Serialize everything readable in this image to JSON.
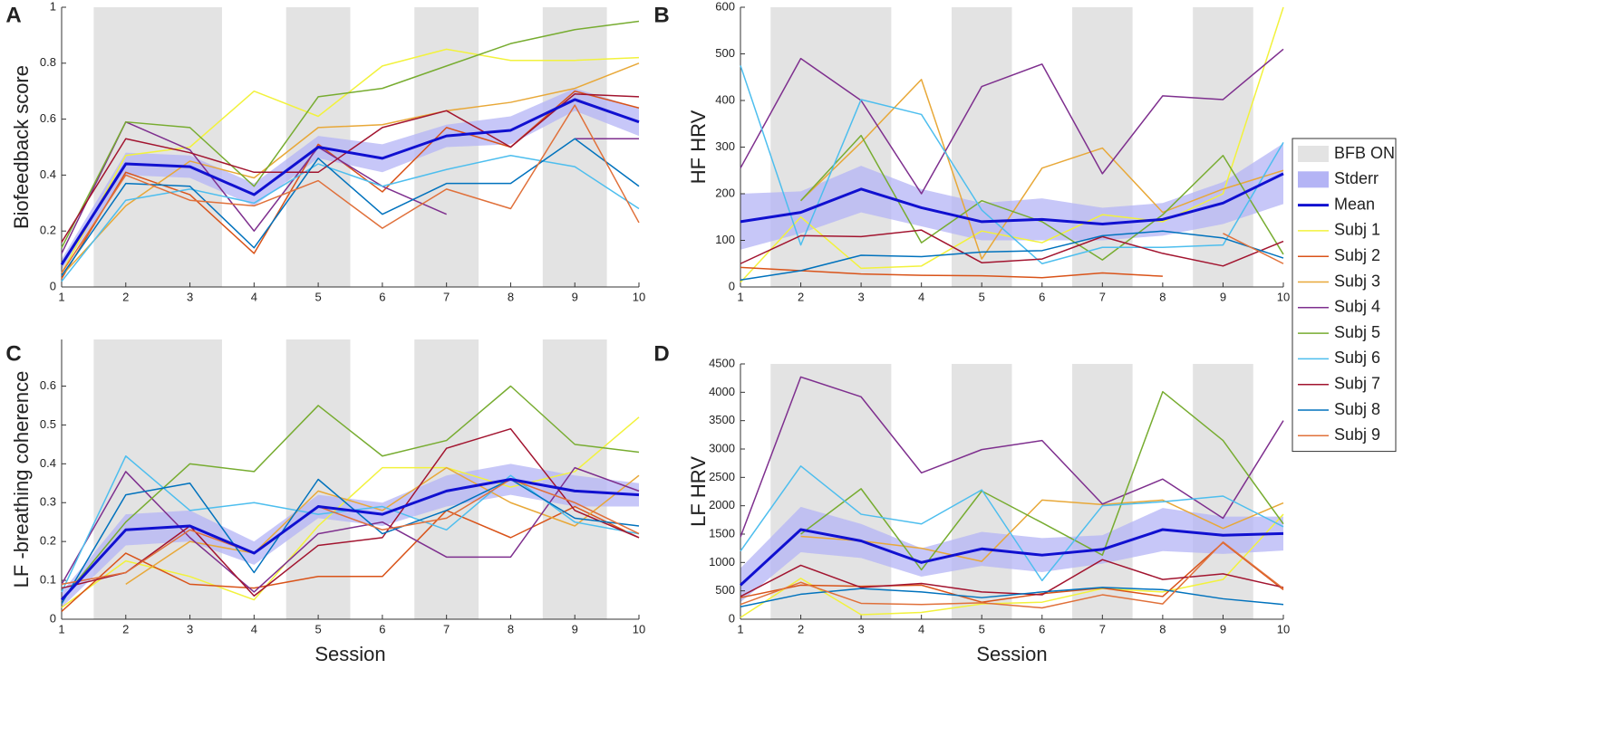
{
  "chart_data": [
    {
      "type": "line",
      "panel": "A",
      "y_label": "Biofeedback score",
      "x": [
        1,
        2,
        3,
        4,
        5,
        6,
        7,
        8,
        9,
        10
      ],
      "xlim": [
        1,
        10
      ],
      "xticks": [
        1,
        2,
        3,
        4,
        5,
        6,
        7,
        8,
        9,
        10
      ],
      "ylim": [
        0,
        1
      ],
      "yticks": [
        0,
        0.2,
        0.4,
        0.6,
        0.8,
        1
      ],
      "shaded": {
        "name": "BFB ON",
        "color": "#e3e3e3",
        "spans": [
          [
            1.5,
            3.5
          ],
          [
            4.5,
            5.5
          ],
          [
            6.5,
            7.5
          ],
          [
            8.5,
            9.5
          ]
        ]
      },
      "band": {
        "name": "Stderr",
        "color": "#b4b4f5",
        "values": [
          0.02,
          0.04,
          0.04,
          0.04,
          0.04,
          0.05,
          0.04,
          0.05,
          0.04,
          0.05
        ]
      },
      "series": [
        {
          "name": "Mean",
          "color": "#1010d0",
          "width": 3,
          "values": [
            0.08,
            0.44,
            0.43,
            0.33,
            0.5,
            0.46,
            0.54,
            0.56,
            0.67,
            0.59
          ]
        },
        {
          "name": "Subj 1",
          "color": "#f2f23c",
          "width": 1.5,
          "values": [
            0.05,
            0.47,
            0.5,
            0.7,
            0.61,
            0.79,
            0.85,
            0.81,
            0.81,
            0.82
          ]
        },
        {
          "name": "Subj 2",
          "color": "#d95319",
          "width": 1.5,
          "values": [
            0.03,
            0.41,
            0.33,
            0.12,
            0.51,
            0.34,
            0.57,
            0.5,
            0.7,
            0.64
          ]
        },
        {
          "name": "Subj 3",
          "color": "#e8a838",
          "width": 1.5,
          "values": [
            0.04,
            0.29,
            0.45,
            0.39,
            0.57,
            0.58,
            0.63,
            0.66,
            0.71,
            0.8
          ]
        },
        {
          "name": "Subj 4",
          "color": "#7e2f8e",
          "width": 1.5,
          "values": [
            0.12,
            0.59,
            0.49,
            0.2,
            0.5,
            0.36,
            0.26,
            null,
            0.53,
            0.53
          ]
        },
        {
          "name": "Subj 5",
          "color": "#77ac30",
          "width": 1.5,
          "values": [
            0.14,
            0.59,
            0.57,
            0.36,
            0.68,
            0.71,
            0.79,
            0.87,
            0.92,
            0.95
          ]
        },
        {
          "name": "Subj 6",
          "color": "#4dbeee",
          "width": 1.5,
          "values": [
            0.02,
            0.31,
            0.35,
            0.3,
            0.44,
            0.36,
            0.42,
            0.47,
            0.43,
            0.28
          ]
        },
        {
          "name": "Subj 7",
          "color": "#a2142f",
          "width": 1.5,
          "values": [
            0.16,
            0.53,
            0.48,
            0.41,
            0.41,
            0.57,
            0.63,
            0.5,
            0.69,
            0.68
          ]
        },
        {
          "name": "Subj 8",
          "color": "#0072bd",
          "width": 1.5,
          "values": [
            0.04,
            0.37,
            0.36,
            0.14,
            0.46,
            0.26,
            0.37,
            0.37,
            0.53,
            0.36
          ]
        },
        {
          "name": "Subj 9",
          "color": "#e0703a",
          "width": 1.5,
          "values": [
            0.05,
            0.4,
            0.31,
            0.29,
            0.38,
            0.21,
            0.35,
            0.28,
            0.65,
            0.23
          ]
        }
      ]
    },
    {
      "type": "line",
      "panel": "B",
      "y_label": "HF HRV",
      "legend": "right",
      "x": [
        1,
        2,
        3,
        4,
        5,
        6,
        7,
        8,
        9,
        10
      ],
      "xlim": [
        1,
        10
      ],
      "xticks": [
        1,
        2,
        3,
        4,
        5,
        6,
        7,
        8,
        9,
        10
      ],
      "ylim": [
        0,
        600
      ],
      "yticks": [
        0,
        100,
        200,
        300,
        400,
        500,
        600
      ],
      "shaded": {
        "name": "BFB ON",
        "color": "#e3e3e3",
        "spans": [
          [
            1.5,
            3.5
          ],
          [
            4.5,
            5.5
          ],
          [
            6.5,
            7.5
          ],
          [
            8.5,
            9.5
          ]
        ]
      },
      "band": {
        "name": "Stderr",
        "color": "#b4b4f5",
        "values": [
          60,
          45,
          50,
          40,
          40,
          45,
          35,
          35,
          45,
          65
        ]
      },
      "series": [
        {
          "name": "Mean",
          "color": "#1010d0",
          "width": 3,
          "values": [
            140,
            160,
            210,
            170,
            140,
            145,
            135,
            145,
            180,
            243
          ]
        },
        {
          "name": "Subj 1",
          "color": "#f2f23c",
          "width": 1.5,
          "values": [
            10,
            150,
            40,
            45,
            120,
            95,
            155,
            140,
            200,
            600
          ]
        },
        {
          "name": "Subj 2",
          "color": "#d95319",
          "width": 1.5,
          "values": [
            42,
            35,
            28,
            25,
            24,
            20,
            30,
            23,
            null,
            null
          ]
        },
        {
          "name": "Subj 3",
          "color": "#e8a838",
          "width": 1.5,
          "values": [
            null,
            185,
            310,
            445,
            60,
            255,
            298,
            160,
            210,
            250
          ]
        },
        {
          "name": "Subj 4",
          "color": "#7e2f8e",
          "width": 1.5,
          "values": [
            255,
            490,
            400,
            200,
            430,
            478,
            243,
            410,
            402,
            510
          ]
        },
        {
          "name": "Subj 5",
          "color": "#77ac30",
          "width": 1.5,
          "values": [
            null,
            185,
            325,
            95,
            185,
            140,
            58,
            155,
            282,
            70
          ]
        },
        {
          "name": "Subj 6",
          "color": "#4dbeee",
          "width": 1.5,
          "values": [
            475,
            90,
            402,
            370,
            165,
            50,
            85,
            85,
            90,
            310
          ]
        },
        {
          "name": "Subj 7",
          "color": "#a2142f",
          "width": 1.5,
          "values": [
            50,
            110,
            108,
            122,
            52,
            60,
            108,
            72,
            45,
            98
          ]
        },
        {
          "name": "Subj 8",
          "color": "#0072bd",
          "width": 1.5,
          "values": [
            15,
            35,
            68,
            65,
            75,
            78,
            110,
            120,
            105,
            62
          ]
        },
        {
          "name": "Subj 9",
          "color": "#e0703a",
          "width": 1.5,
          "values": [
            null,
            null,
            null,
            null,
            null,
            null,
            null,
            null,
            115,
            50
          ]
        }
      ]
    },
    {
      "type": "line",
      "panel": "C",
      "y_label": "LF -breathing coherence",
      "x_label": "Session",
      "x": [
        1,
        2,
        3,
        4,
        5,
        6,
        7,
        8,
        9,
        10
      ],
      "xlim": [
        1,
        10
      ],
      "xticks": [
        1,
        2,
        3,
        4,
        5,
        6,
        7,
        8,
        9,
        10
      ],
      "ylim": [
        0,
        0.72
      ],
      "yticks": [
        0,
        0.1,
        0.2,
        0.3,
        0.4,
        0.5,
        0.6
      ],
      "shaded": {
        "name": "BFB ON",
        "color": "#e3e3e3",
        "spans": [
          [
            1.5,
            3.5
          ],
          [
            4.5,
            5.5
          ],
          [
            6.5,
            7.5
          ],
          [
            8.5,
            9.5
          ]
        ]
      },
      "band": {
        "name": "Stderr",
        "color": "#b4b4f5",
        "values": [
          0.02,
          0.04,
          0.04,
          0.03,
          0.03,
          0.03,
          0.04,
          0.04,
          0.04,
          0.03
        ]
      },
      "series": [
        {
          "name": "Mean",
          "color": "#1010d0",
          "width": 3,
          "values": [
            0.05,
            0.23,
            0.24,
            0.17,
            0.29,
            0.27,
            0.33,
            0.36,
            0.33,
            0.32
          ]
        },
        {
          "name": "Subj 1",
          "color": "#f2f23c",
          "width": 1.5,
          "values": [
            0.03,
            0.15,
            0.11,
            0.05,
            0.24,
            0.39,
            0.39,
            0.34,
            0.38,
            0.52
          ]
        },
        {
          "name": "Subj 2",
          "color": "#d95319",
          "width": 1.5,
          "values": [
            0.02,
            0.17,
            0.09,
            0.08,
            0.11,
            0.11,
            0.28,
            0.21,
            0.29,
            0.21
          ]
        },
        {
          "name": "Subj 3",
          "color": "#e8a838",
          "width": 1.5,
          "values": [
            null,
            0.09,
            0.2,
            0.17,
            0.33,
            0.28,
            0.39,
            0.3,
            0.24,
            0.37
          ]
        },
        {
          "name": "Subj 4",
          "color": "#7e2f8e",
          "width": 1.5,
          "values": [
            0.09,
            0.38,
            0.21,
            0.07,
            0.22,
            0.25,
            0.16,
            0.16,
            0.39,
            0.33
          ]
        },
        {
          "name": "Subj 5",
          "color": "#77ac30",
          "width": 1.5,
          "values": [
            0.05,
            0.25,
            0.4,
            0.38,
            0.55,
            0.42,
            0.46,
            0.6,
            0.45,
            0.43
          ]
        },
        {
          "name": "Subj 6",
          "color": "#4dbeee",
          "width": 1.5,
          "values": [
            0.07,
            0.42,
            0.28,
            0.3,
            0.27,
            0.29,
            0.23,
            0.37,
            0.25,
            0.22
          ]
        },
        {
          "name": "Subj 7",
          "color": "#a2142f",
          "width": 1.5,
          "values": [
            0.08,
            0.12,
            0.24,
            0.06,
            0.19,
            0.21,
            0.44,
            0.49,
            0.28,
            0.21
          ]
        },
        {
          "name": "Subj 8",
          "color": "#0072bd",
          "width": 1.5,
          "values": [
            0.04,
            0.32,
            0.35,
            0.12,
            0.36,
            0.22,
            0.28,
            0.36,
            0.26,
            0.24
          ]
        },
        {
          "name": "Subj 9",
          "color": "#e0703a",
          "width": 1.5,
          "values": [
            0.09,
            0.12,
            0.23,
            0.17,
            0.29,
            0.23,
            0.26,
            0.36,
            0.3,
            0.22
          ]
        }
      ]
    },
    {
      "type": "line",
      "panel": "D",
      "y_label": "LF HRV",
      "x_label": "Session",
      "x": [
        1,
        2,
        3,
        4,
        5,
        6,
        7,
        8,
        9,
        10
      ],
      "xlim": [
        1,
        10
      ],
      "xticks": [
        1,
        2,
        3,
        4,
        5,
        6,
        7,
        8,
        9,
        10
      ],
      "ylim": [
        0,
        4500
      ],
      "yticks": [
        0,
        500,
        1000,
        1500,
        2000,
        2500,
        3000,
        3500,
        4000,
        4500
      ],
      "shaded": {
        "name": "BFB ON",
        "color": "#e3e3e3",
        "spans": [
          [
            1.5,
            3.5
          ],
          [
            4.5,
            5.5
          ],
          [
            6.5,
            7.5
          ],
          [
            8.5,
            9.5
          ]
        ]
      },
      "band": {
        "name": "Stderr",
        "color": "#b4b4f5",
        "values": [
          300,
          400,
          300,
          250,
          300,
          300,
          250,
          380,
          330,
          300
        ]
      },
      "series": [
        {
          "name": "Mean",
          "color": "#1010d0",
          "width": 3,
          "values": [
            600,
            1580,
            1380,
            1000,
            1240,
            1130,
            1230,
            1580,
            1480,
            1510
          ]
        },
        {
          "name": "Subj 1",
          "color": "#f2f23c",
          "width": 1.5,
          "values": [
            30,
            720,
            80,
            120,
            270,
            300,
            540,
            480,
            700,
            1850
          ]
        },
        {
          "name": "Subj 2",
          "color": "#d95319",
          "width": 1.5,
          "values": [
            380,
            600,
            580,
            600,
            300,
            450,
            550,
            400,
            1350,
            520
          ]
        },
        {
          "name": "Subj 3",
          "color": "#e8a838",
          "width": 1.5,
          "values": [
            null,
            1460,
            1380,
            1250,
            1020,
            2100,
            2020,
            2100,
            1600,
            2050
          ]
        },
        {
          "name": "Subj 4",
          "color": "#7e2f8e",
          "width": 1.5,
          "values": [
            1450,
            4270,
            3920,
            2580,
            2990,
            3150,
            2030,
            2470,
            1780,
            3500
          ]
        },
        {
          "name": "Subj 5",
          "color": "#77ac30",
          "width": 1.5,
          "values": [
            null,
            1500,
            2300,
            870,
            2260,
            1700,
            1130,
            4010,
            3150,
            1680
          ]
        },
        {
          "name": "Subj 6",
          "color": "#4dbeee",
          "width": 1.5,
          "values": [
            1200,
            2700,
            1850,
            1680,
            2280,
            680,
            2000,
            2070,
            2170,
            1630
          ]
        },
        {
          "name": "Subj 7",
          "color": "#a2142f",
          "width": 1.5,
          "values": [
            400,
            950,
            560,
            630,
            480,
            430,
            1050,
            700,
            800,
            560
          ]
        },
        {
          "name": "Subj 8",
          "color": "#0072bd",
          "width": 1.5,
          "values": [
            220,
            440,
            540,
            480,
            380,
            480,
            560,
            520,
            360,
            260
          ]
        },
        {
          "name": "Subj 9",
          "color": "#e0703a",
          "width": 1.5,
          "values": [
            260,
            650,
            280,
            260,
            290,
            200,
            430,
            270,
            1360,
            540
          ]
        }
      ]
    }
  ]
}
